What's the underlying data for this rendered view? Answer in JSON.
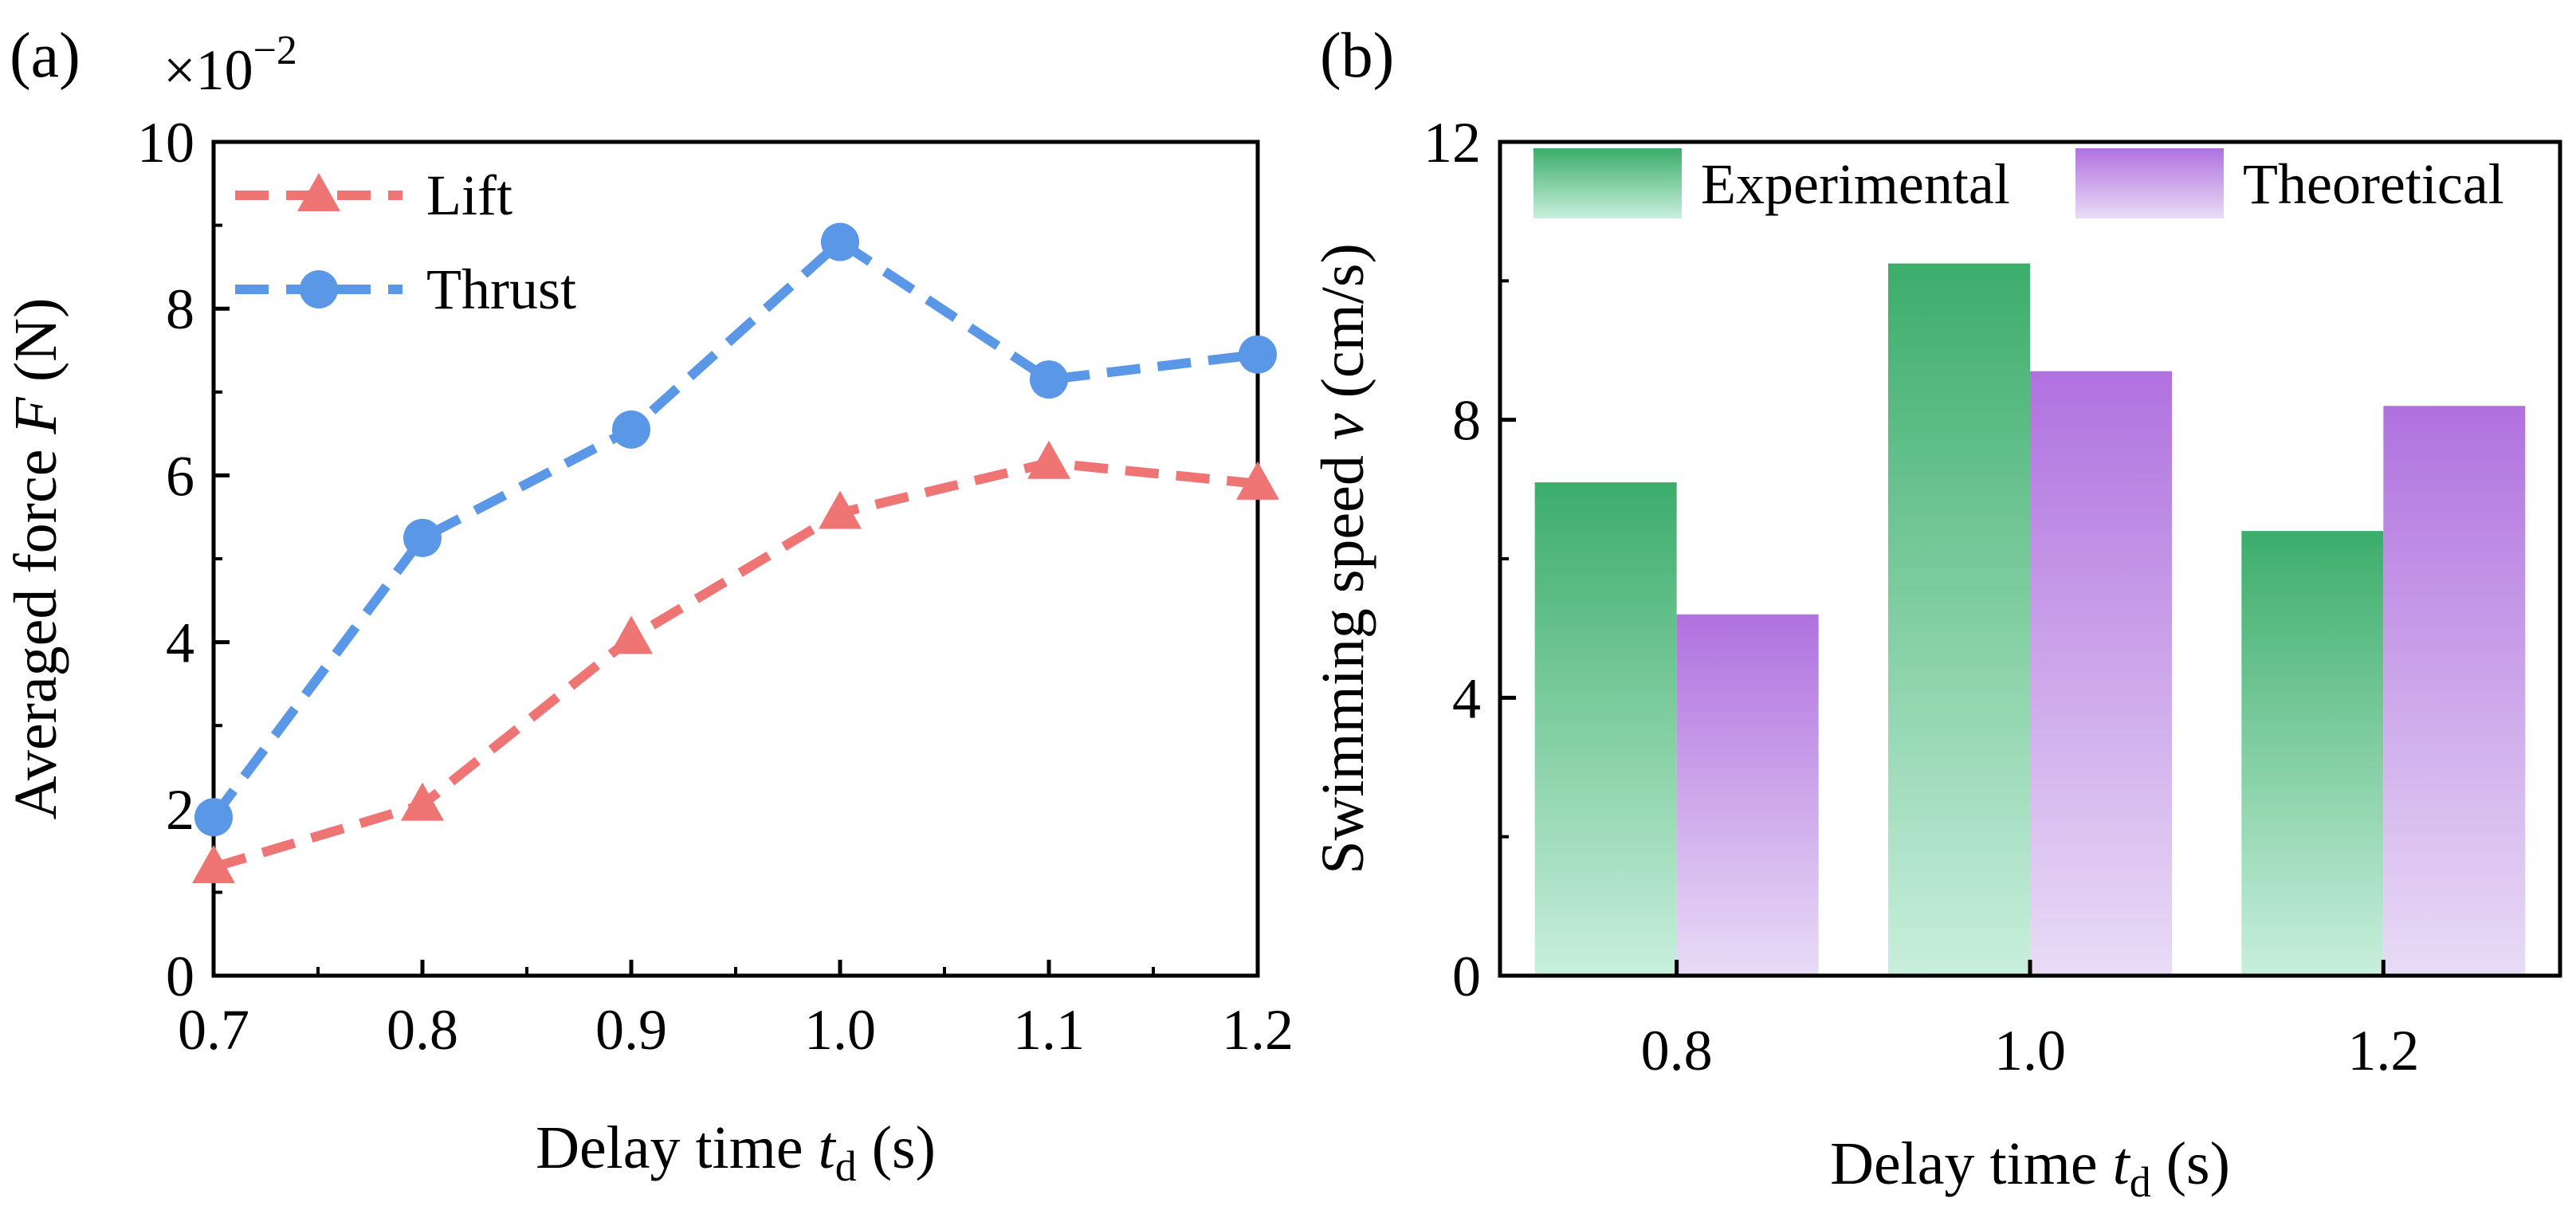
{
  "chart_data": [
    {
      "panel_label": "(a)",
      "type": "line",
      "x": [
        0.7,
        0.8,
        0.9,
        1.0,
        1.1,
        1.2
      ],
      "x_tick_labels": [
        "0.7",
        "0.8",
        "0.9",
        "1.0",
        "1.1",
        "1.2"
      ],
      "y_tick_labels": [
        "0",
        "2",
        "4",
        "6",
        "8",
        "10"
      ],
      "y_ticks": [
        0,
        2,
        4,
        6,
        8,
        10
      ],
      "y_multiplier_label": "×10",
      "y_multiplier_exp": "−2",
      "series": [
        {
          "name": "Lift",
          "marker": "triangle",
          "color": "#ef7575",
          "values": [
            1.3,
            2.05,
            4.05,
            5.55,
            6.15,
            5.9
          ]
        },
        {
          "name": "Thrust",
          "marker": "circle",
          "color": "#5a97e6",
          "values": [
            1.9,
            5.25,
            6.55,
            8.8,
            7.15,
            7.45
          ]
        }
      ],
      "xlim": [
        0.7,
        1.2
      ],
      "ylim": [
        0,
        10
      ],
      "xlabel": {
        "main": "Delay time ",
        "var": "t",
        "sub": "d",
        "unit": " (s)"
      },
      "ylabel": {
        "main": "Averaged force ",
        "var": "F",
        "unit": " (N)"
      },
      "legend_position": "top-left",
      "grid": false
    },
    {
      "panel_label": "(b)",
      "type": "bar",
      "categories": [
        "0.8",
        "1.0",
        "1.2"
      ],
      "series": [
        {
          "name": "Experimental",
          "color_top": "#3cad6a",
          "color_bottom": "#c8efdc",
          "values": [
            7.1,
            10.25,
            6.4
          ]
        },
        {
          "name": "Theoretical",
          "color_top": "#b071df",
          "color_bottom": "#e9dcf6",
          "values": [
            5.2,
            8.7,
            8.2
          ]
        }
      ],
      "y_tick_labels": [
        "0",
        "4",
        "8",
        "12"
      ],
      "y_ticks": [
        0,
        4,
        8,
        12
      ],
      "ylim": [
        0,
        12
      ],
      "xlabel": {
        "main": "Delay time ",
        "var": "t",
        "sub": "d",
        "unit": " (s)"
      },
      "ylabel": {
        "main": "Swimming speed ",
        "var": "v",
        "unit": " (cm/s)"
      },
      "legend_position": "top",
      "grid": false
    }
  ]
}
